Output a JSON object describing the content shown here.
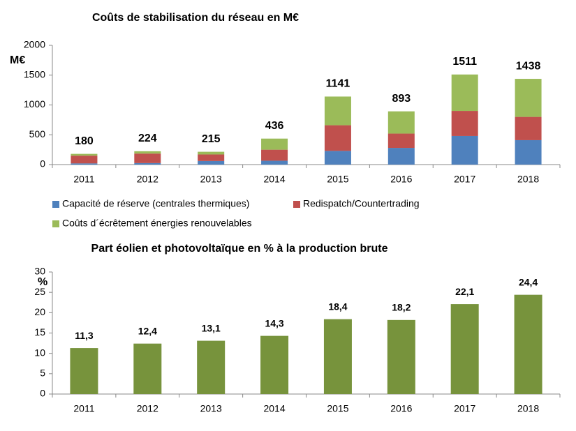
{
  "chart_data": [
    {
      "type": "stacked-bar",
      "title": "Coûts de stabilisation du réseau en M€",
      "y_label": "M€",
      "categories": [
        "2011",
        "2012",
        "2013",
        "2014",
        "2015",
        "2016",
        "2017",
        "2018"
      ],
      "series": [
        {
          "name": "Capacité de réserve (centrales thermiques)",
          "color": "#4f81bd",
          "values": [
            20,
            25,
            60,
            65,
            230,
            280,
            480,
            410
          ]
        },
        {
          "name": "Redispatch/Countertrading",
          "color": "#c0504d",
          "values": [
            130,
            160,
            110,
            185,
            430,
            240,
            420,
            390
          ]
        },
        {
          "name": "Coûts d´écrêtement énergies renouvelables",
          "color": "#9bbb59",
          "values": [
            30,
            39,
            45,
            186,
            481,
            373,
            611,
            638
          ]
        }
      ],
      "totals": [
        180,
        224,
        215,
        436,
        1141,
        893,
        1511,
        1438
      ],
      "ylim": [
        0,
        2000
      ],
      "yticks": [
        0,
        500,
        1000,
        1500,
        2000
      ],
      "grid": false
    },
    {
      "type": "bar",
      "title": "Part éolien et photovoltaïque en % à la production brute",
      "y_label": "%",
      "categories": [
        "2011",
        "2012",
        "2013",
        "2014",
        "2015",
        "2016",
        "2017",
        "2018"
      ],
      "values": [
        11.3,
        12.4,
        13.1,
        14.3,
        18.4,
        18.2,
        22.1,
        24.4
      ],
      "value_labels": [
        "11,3",
        "12,4",
        "13,1",
        "14,3",
        "18,4",
        "18,2",
        "22,1",
        "24,4"
      ],
      "color": "#77933c",
      "ylim": [
        0,
        30
      ],
      "yticks": [
        0,
        5,
        10,
        15,
        20,
        25,
        30
      ],
      "grid": false
    }
  ]
}
